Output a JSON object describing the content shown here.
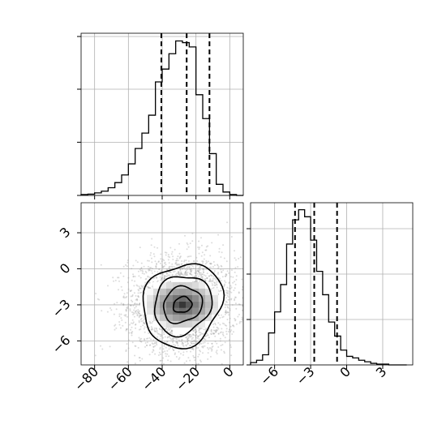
{
  "chart_data": [
    {
      "type": "histogram",
      "panel": "top-left",
      "variable": "x",
      "bin_edges": [
        -88,
        -84,
        -80,
        -76,
        -72,
        -68,
        -64,
        -60,
        -56,
        -52,
        -48,
        -44,
        -40,
        -36,
        -32,
        -28,
        -24,
        -20,
        -16,
        -12,
        -8,
        -4,
        0,
        4,
        8
      ],
      "counts": [
        1,
        1.5,
        3,
        5,
        9,
        15,
        24,
        37,
        55,
        73,
        94,
        133,
        148,
        166,
        181,
        179,
        174,
        118,
        90,
        49,
        13,
        4,
        1,
        0
      ],
      "quantile_lines": [
        -40.5,
        -25.5,
        -12
      ],
      "xlim": [
        -88,
        8
      ],
      "y_ticks_labeled": false,
      "grid": true
    },
    {
      "type": "histogram",
      "panel": "bottom-right",
      "variable": "y",
      "bin_edges": [
        -8,
        -7.5,
        -7,
        -6.5,
        -6,
        -5.5,
        -5,
        -4.5,
        -4,
        -3.5,
        -3,
        -2.5,
        -2,
        -1.5,
        -1,
        -0.5,
        0,
        0.5,
        1,
        1.5,
        2,
        2.5,
        3,
        3.5,
        4,
        4.5,
        5
      ],
      "counts": [
        3,
        6,
        13,
        41,
        68,
        103,
        155,
        186,
        199,
        190,
        160,
        120,
        90,
        55,
        37,
        19,
        11,
        9,
        6,
        4,
        2,
        1,
        1,
        0,
        0,
        0
      ],
      "quantile_lines": [
        -4.3,
        -2.7,
        -0.8
      ],
      "xlim": [
        -8,
        5.5
      ],
      "x_ticks": [
        -6,
        -3,
        0,
        3
      ],
      "y_ticks_labeled": false,
      "grid": true
    },
    {
      "type": "scatter-density",
      "panel": "bottom-left",
      "variables": [
        "x",
        "y"
      ],
      "center": [
        -28,
        -3
      ],
      "spread": [
        16,
        2
      ],
      "n_points": 3000,
      "xlim": [
        -88,
        8
      ],
      "ylim": [
        -8,
        5.5
      ],
      "x_ticks": [
        -80,
        -60,
        -40,
        -20,
        0
      ],
      "y_ticks": [
        -6,
        -3,
        0,
        3
      ],
      "contours": [
        {
          "level": "outer",
          "rx": 23.5,
          "ry": 3.45
        },
        {
          "level": "middle",
          "rx": 17,
          "ry": 2.45
        },
        {
          "level": "inner",
          "rx": 11.5,
          "ry": 1.5
        },
        {
          "level": "core",
          "rx": 5.5,
          "ry": 0.65
        }
      ],
      "grid": true
    }
  ]
}
